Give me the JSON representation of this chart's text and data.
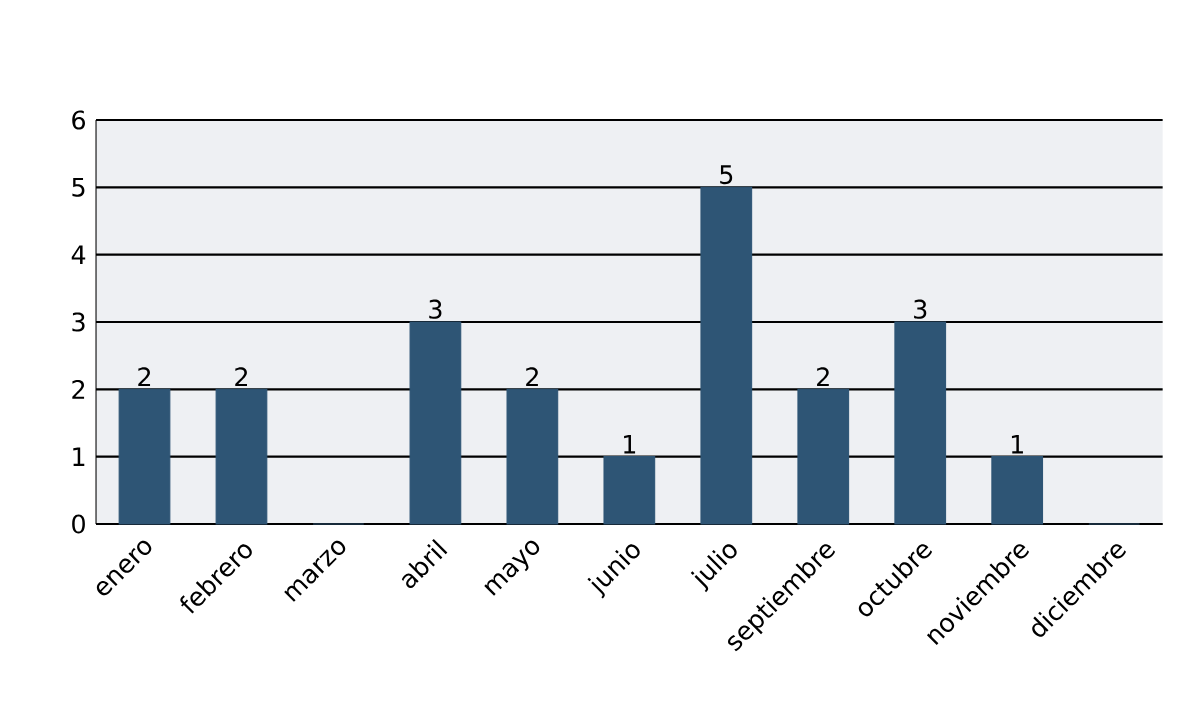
{
  "chart_data": {
    "type": "bar",
    "categories": [
      "enero",
      "febrero",
      "marzo",
      "abril",
      "mayo",
      "junio",
      "julio",
      "septiembre",
      "octubre",
      "noviembre",
      "diciembre"
    ],
    "values": [
      2,
      2,
      0,
      3,
      2,
      1,
      5,
      2,
      3,
      1,
      0
    ],
    "value_labels": [
      "2",
      "2",
      null,
      "3",
      "2",
      "1",
      "5",
      "2",
      "3",
      "1",
      null
    ],
    "color": "#2e5575",
    "ylim": [
      0,
      6
    ],
    "yticks": [
      0,
      1,
      2,
      3,
      4,
      5,
      6
    ],
    "grid": "y"
  }
}
